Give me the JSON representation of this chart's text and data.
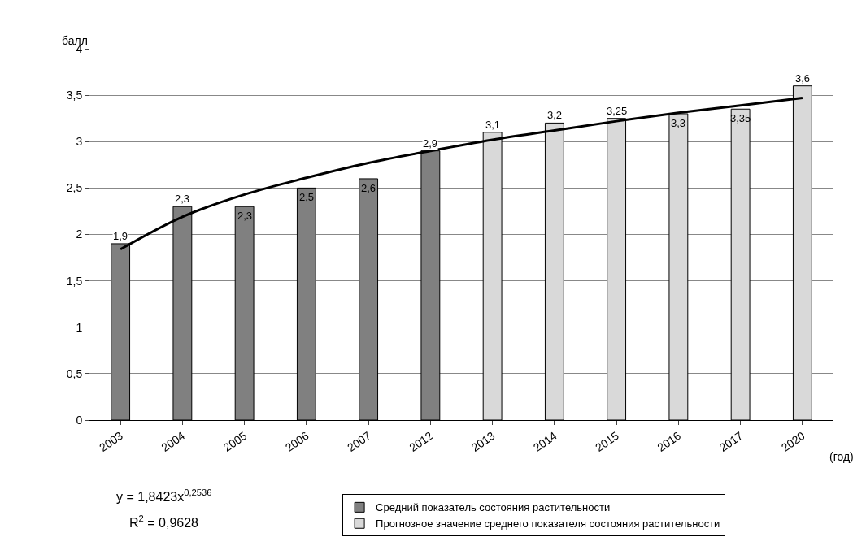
{
  "chart_data": {
    "type": "bar",
    "ylabel": "балл",
    "xlabel": "(год)",
    "categories": [
      "2003",
      "2004",
      "2005",
      "2006",
      "2007",
      "2012",
      "2013",
      "2014",
      "2015",
      "2016",
      "2017",
      "2020"
    ],
    "series": [
      {
        "name": "Средний показатель состояния растительности",
        "color": "#808080",
        "values": [
          1.9,
          2.3,
          2.3,
          2.5,
          2.6,
          2.9,
          null,
          null,
          null,
          null,
          null,
          null
        ],
        "value_labels": [
          "1,9",
          "2,3",
          "2,3",
          "2,5",
          "2,6",
          "2,9",
          null,
          null,
          null,
          null,
          null,
          null
        ]
      },
      {
        "name": "Прогнозное значение среднего показателя состояния растительности",
        "color": "#d9d9d9",
        "values": [
          null,
          null,
          null,
          null,
          null,
          null,
          3.1,
          3.2,
          3.25,
          3.3,
          3.35,
          3.6
        ],
        "value_labels": [
          null,
          null,
          null,
          null,
          null,
          null,
          "3,1",
          "3,2",
          "3,25",
          "3,3",
          "3,35",
          "3,6"
        ]
      },
      {
        "type": "line",
        "color": "#000000",
        "values": [
          1.84,
          2.19,
          2.43,
          2.61,
          2.77,
          2.9,
          3.02,
          3.12,
          3.22,
          3.31,
          3.39,
          3.47
        ]
      }
    ],
    "ylim": [
      0,
      4
    ],
    "yticks": [
      0,
      {
        "value": 0.5,
        "label": "0,5"
      },
      1,
      {
        "value": 1.5,
        "label": "1,5"
      },
      2,
      {
        "value": 2.5,
        "label": "2,5"
      },
      3,
      {
        "value": 3.5,
        "label": "3,5"
      },
      4
    ],
    "grid": "y",
    "legend": "bottom",
    "marker": "none",
    "line_style": "solid",
    "annotations": [
      "y = 1,8423x$^{0,2536}$",
      "R$^{2}$ = 0,9628"
    ]
  }
}
